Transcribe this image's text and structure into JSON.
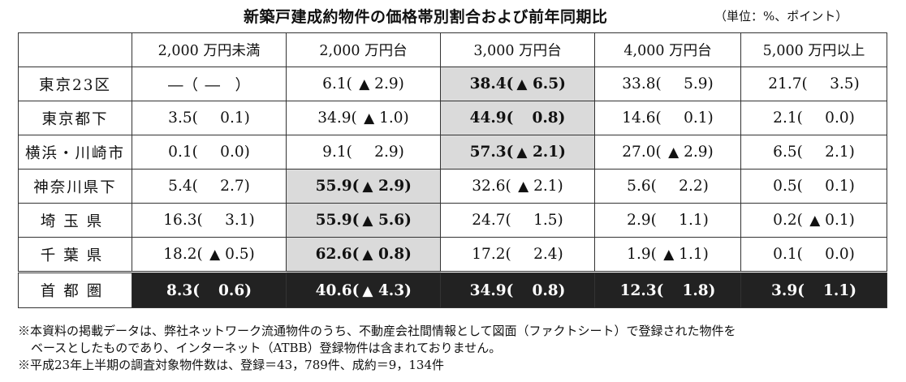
{
  "title": "新築戸建成約物件の価格帯別割合および前年同期比",
  "unit": "（単位：%、ポイント）",
  "columns": [
    "2,000 万円未満",
    "2,000 万円台",
    "3,000 万円台",
    "4,000 万円台",
    "5,000 万円以上"
  ],
  "rows": [
    {
      "label": "東京23区",
      "cells": [
        {
          "v": "―（",
          "t": "",
          "c": "―　）"
        },
        {
          "v": "6.1(",
          "t": "▲",
          "c": "2.9)"
        },
        {
          "v": "38.4(",
          "t": "▲",
          "c": "6.5)",
          "hl": true
        },
        {
          "v": "33.8(",
          "t": "",
          "c": "5.9)"
        },
        {
          "v": "21.7(",
          "t": "",
          "c": "3.5)"
        }
      ]
    },
    {
      "label": "東京都下",
      "cells": [
        {
          "v": "3.5(",
          "t": "",
          "c": "0.1)"
        },
        {
          "v": "34.9(",
          "t": "▲",
          "c": "1.0)"
        },
        {
          "v": "44.9(",
          "t": "",
          "c": "0.8)",
          "hl": true
        },
        {
          "v": "14.6(",
          "t": "",
          "c": "0.1)"
        },
        {
          "v": "2.1(",
          "t": "",
          "c": "0.0)"
        }
      ]
    },
    {
      "label": "横浜・川崎市",
      "cells": [
        {
          "v": "0.1(",
          "t": "",
          "c": "0.0)"
        },
        {
          "v": "9.1(",
          "t": "",
          "c": "2.9)"
        },
        {
          "v": "57.3(",
          "t": "▲",
          "c": "2.1)",
          "hl": true
        },
        {
          "v": "27.0(",
          "t": "▲",
          "c": "2.9)"
        },
        {
          "v": "6.5(",
          "t": "",
          "c": "2.1)"
        }
      ]
    },
    {
      "label": "神奈川県下",
      "cells": [
        {
          "v": "5.4(",
          "t": "",
          "c": "2.7)"
        },
        {
          "v": "55.9(",
          "t": "▲",
          "c": "2.9)",
          "hl": true
        },
        {
          "v": "32.6(",
          "t": "▲",
          "c": "2.1)"
        },
        {
          "v": "5.6(",
          "t": "",
          "c": "2.2)"
        },
        {
          "v": "0.5(",
          "t": "",
          "c": "0.1)"
        }
      ]
    },
    {
      "label": "埼玉県",
      "cells": [
        {
          "v": "16.3(",
          "t": "",
          "c": "3.1)"
        },
        {
          "v": "55.9(",
          "t": "▲",
          "c": "5.6)",
          "hl": true
        },
        {
          "v": "24.7(",
          "t": "",
          "c": "1.5)"
        },
        {
          "v": "2.9(",
          "t": "",
          "c": "1.1)"
        },
        {
          "v": "0.2(",
          "t": "▲",
          "c": "0.1)"
        }
      ]
    },
    {
      "label": "千葉県",
      "cells": [
        {
          "v": "18.2(",
          "t": "▲",
          "c": "0.5)"
        },
        {
          "v": "62.6(",
          "t": "▲",
          "c": "0.8)",
          "hl": true
        },
        {
          "v": "17.2(",
          "t": "",
          "c": "2.4)"
        },
        {
          "v": "1.9(",
          "t": "▲",
          "c": "1.1)"
        },
        {
          "v": "0.1(",
          "t": "",
          "c": "0.0)"
        }
      ]
    }
  ],
  "total": {
    "label": "首都圏",
    "cells": [
      {
        "v": "8.3(",
        "t": "",
        "c": "0.6)"
      },
      {
        "v": "40.6(",
        "t": "▲",
        "c": "4.3)"
      },
      {
        "v": "34.9(",
        "t": "",
        "c": "0.8)"
      },
      {
        "v": "12.3(",
        "t": "",
        "c": "1.8)"
      },
      {
        "v": "3.9(",
        "t": "",
        "c": "1.1)"
      }
    ]
  },
  "notes": [
    "※本資料の掲載データは、弊社ネットワーク流通物件のうち、不動産会社間情報として図面（ファクトシート）で登録された物件を",
    "ベースとしたものであり、インターネット（ATBB）登録物件は含まれておりません。",
    "※平成23年上半期の調査対象物件数は、登録＝43，789件、成約＝9，134件"
  ],
  "colors": {
    "highlight": "#dadada",
    "total_bg": "#222222",
    "total_fg": "#ffffff"
  }
}
